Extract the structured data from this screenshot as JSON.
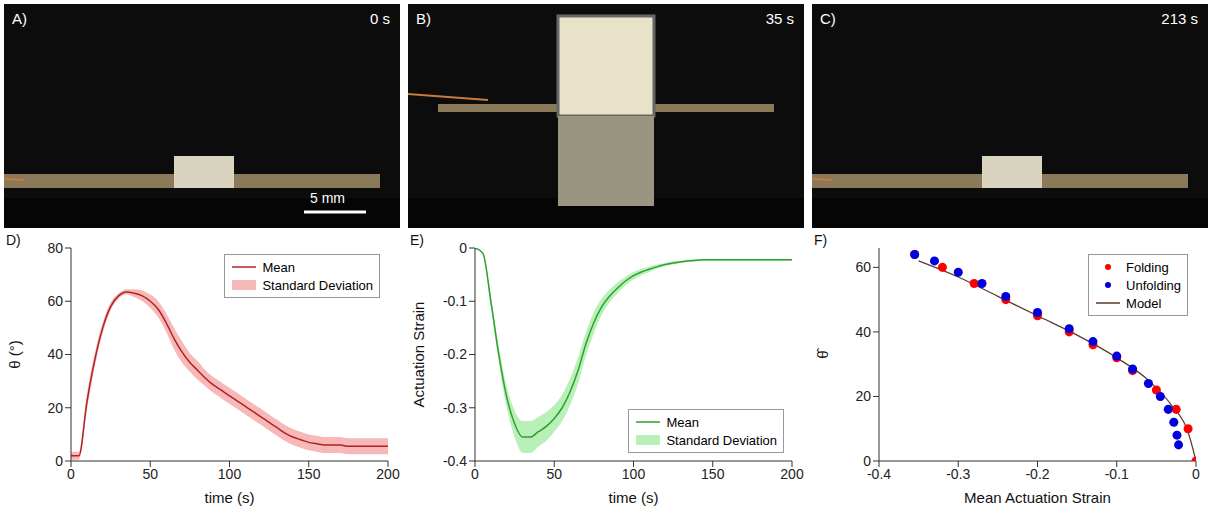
{
  "photos": [
    {
      "label": "A)",
      "time": "0 s",
      "scale_bar": "5 mm"
    },
    {
      "label": "B)",
      "time": "35 s"
    },
    {
      "label": "C)",
      "time": "213 s"
    }
  ],
  "chart_data": [
    {
      "panel": "D)",
      "type": "line",
      "x_label": "time (s)",
      "y_label": "θ (°)",
      "xlim": [
        0,
        200
      ],
      "xticks": [
        0,
        50,
        100,
        150,
        200
      ],
      "ylim": [
        0,
        80
      ],
      "yticks": [
        0,
        20,
        40,
        60,
        80
      ],
      "legend": "top-right",
      "x": [
        0,
        5,
        10,
        15,
        20,
        25,
        30,
        35,
        40,
        45,
        50,
        55,
        60,
        65,
        70,
        75,
        80,
        85,
        90,
        95,
        100,
        105,
        110,
        115,
        120,
        125,
        130,
        135,
        140,
        145,
        150,
        155,
        160,
        165,
        170,
        175,
        180,
        185,
        190,
        195,
        200
      ],
      "series": [
        {
          "name": "Mean",
          "color": "#b22222",
          "values": [
            2,
            2,
            22,
            38,
            50,
            58,
            62,
            63.5,
            63,
            62,
            60,
            57,
            52,
            46,
            41,
            37,
            34,
            31,
            28.5,
            26.5,
            24.5,
            22.5,
            20.5,
            18.5,
            16.5,
            14.5,
            12.5,
            10.5,
            9,
            8,
            7,
            6.5,
            6,
            6,
            6,
            5.5,
            5.5,
            5.5,
            5.5,
            5.5,
            5.5
          ]
        }
      ],
      "band": {
        "name": "Standard Deviation",
        "color": "#f7b8b8",
        "values": [
          1.5,
          1.5,
          3,
          2.5,
          2,
          1.5,
          1,
          1,
          1.5,
          2,
          2.5,
          3,
          3.5,
          4,
          4,
          3.5,
          3.5,
          3,
          3,
          3,
          3,
          3,
          3,
          3,
          3,
          3,
          3,
          3,
          3,
          3,
          3,
          3,
          3,
          3,
          3,
          3,
          3,
          3,
          3,
          3,
          3
        ]
      }
    },
    {
      "panel": "E)",
      "type": "line",
      "x_label": "time (s)",
      "y_label": "Actuation Strain",
      "xlim": [
        0,
        200
      ],
      "xticks": [
        0,
        50,
        100,
        150,
        200
      ],
      "ylim": [
        -0.4,
        0
      ],
      "yticks": [
        -0.4,
        -0.3,
        -0.2,
        -0.1,
        0
      ],
      "legend": "bottom-right",
      "x": [
        0,
        5,
        10,
        15,
        20,
        25,
        30,
        35,
        40,
        45,
        50,
        55,
        60,
        65,
        70,
        75,
        80,
        85,
        90,
        95,
        100,
        105,
        110,
        115,
        120,
        125,
        130,
        135,
        140,
        145,
        150,
        155,
        160,
        165,
        170,
        175,
        180,
        185,
        190,
        195,
        200
      ],
      "series": [
        {
          "name": "Mean",
          "color": "#2ea02e",
          "values": [
            0,
            -0.01,
            -0.1,
            -0.2,
            -0.28,
            -0.33,
            -0.355,
            -0.355,
            -0.345,
            -0.335,
            -0.32,
            -0.3,
            -0.27,
            -0.23,
            -0.18,
            -0.14,
            -0.11,
            -0.09,
            -0.075,
            -0.062,
            -0.052,
            -0.045,
            -0.04,
            -0.035,
            -0.031,
            -0.028,
            -0.026,
            -0.024,
            -0.023,
            -0.022,
            -0.022,
            -0.022,
            -0.022,
            -0.022,
            -0.022,
            -0.022,
            -0.022,
            -0.022,
            -0.022,
            -0.022,
            -0.022
          ]
        }
      ],
      "band": {
        "name": "Standard Deviation",
        "color": "#b8f0b8",
        "values": [
          0,
          0.002,
          0.01,
          0.015,
          0.02,
          0.025,
          0.03,
          0.03,
          0.028,
          0.027,
          0.025,
          0.025,
          0.025,
          0.025,
          0.022,
          0.02,
          0.015,
          0.012,
          0.01,
          0.008,
          0.007,
          0.006,
          0.005,
          0.004,
          0.003,
          0.003,
          0.002,
          0.002,
          0.002,
          0.002,
          0.002,
          0.002,
          0.002,
          0.002,
          0.002,
          0.002,
          0.002,
          0.002,
          0.002,
          0.002,
          0.002
        ]
      }
    },
    {
      "panel": "F)",
      "type": "scatter",
      "x_label": "Mean Actuation Strain",
      "y_label": "θ̂",
      "xlim": [
        -0.4,
        0
      ],
      "xticks": [
        -0.4,
        -0.3,
        -0.2,
        -0.1,
        0
      ],
      "ylim": [
        0,
        66
      ],
      "yticks": [
        0,
        20,
        40,
        60
      ],
      "legend": "top-right",
      "series": [
        {
          "name": "Folding",
          "color": "#ff0000",
          "marker": "circle",
          "x": [
            0,
            -0.01,
            -0.025,
            -0.05,
            -0.08,
            -0.1,
            -0.13,
            -0.16,
            -0.2,
            -0.24,
            -0.28,
            -0.32,
            -0.355
          ],
          "values": [
            0,
            10,
            16,
            22,
            28,
            32,
            36,
            40,
            45,
            50,
            55,
            60,
            64
          ]
        },
        {
          "name": "Unfolding",
          "color": "#0000dd",
          "marker": "circle",
          "x": [
            -0.355,
            -0.33,
            -0.3,
            -0.27,
            -0.24,
            -0.2,
            -0.16,
            -0.13,
            -0.1,
            -0.08,
            -0.06,
            -0.045,
            -0.035,
            -0.028,
            -0.024,
            -0.022
          ],
          "values": [
            64,
            62,
            58.5,
            55,
            51,
            46,
            41,
            37,
            32.5,
            28.5,
            24,
            20,
            16,
            12,
            8,
            5
          ]
        },
        {
          "name": "Model",
          "color": "#5a3a2a",
          "type": "line",
          "x": [
            -0.35,
            -0.3,
            -0.25,
            -0.2,
            -0.15,
            -0.1,
            -0.06,
            -0.03,
            -0.01,
            0
          ],
          "values": [
            62,
            57,
            51,
            45,
            39,
            32,
            25,
            17,
            9,
            0
          ]
        }
      ]
    }
  ]
}
